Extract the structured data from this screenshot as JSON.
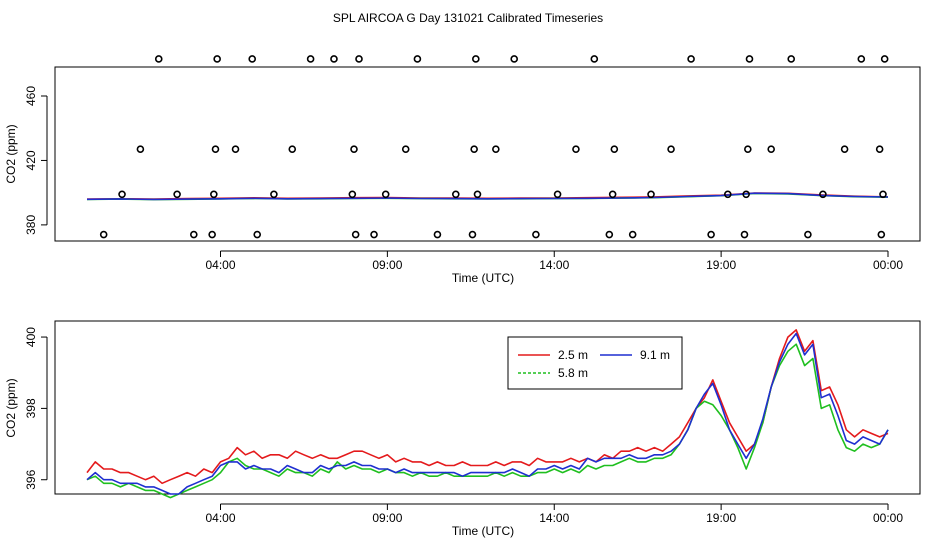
{
  "page_title": "SPL AIRCOA G  Day 131021  Calibrated Timeseries",
  "chart_data": [
    {
      "type": "scatter+line",
      "title": "",
      "xlabel": "Time (UTC)",
      "ylabel": "CO2 (ppm)",
      "xlim": [
        0,
        24
      ],
      "ylim": [
        370,
        478
      ],
      "x_tick_values": [
        4,
        9,
        14,
        19,
        24
      ],
      "x_tick_labels": [
        "04:00",
        "09:00",
        "14:00",
        "19:00",
        "00:00"
      ],
      "y_tick_values": [
        380,
        420,
        460
      ],
      "y_tick_labels": [
        "380",
        "420",
        "460"
      ],
      "points": {
        "name": "calibration samples",
        "x": [
          0.5,
          1.05,
          1.6,
          2.15,
          2.7,
          3.2,
          3.75,
          3.8,
          3.85,
          3.9,
          4.45,
          4.95,
          5.1,
          5.6,
          6.15,
          6.7,
          7.4,
          7.95,
          8.0,
          8.05,
          8.15,
          8.6,
          8.95,
          9.55,
          9.9,
          10.5,
          11.05,
          11.55,
          11.6,
          11.65,
          11.7,
          12.25,
          12.8,
          13.45,
          14.1,
          14.65,
          15.2,
          15.65,
          15.75,
          15.8,
          16.35,
          16.9,
          17.5,
          18.1,
          18.7,
          19.2,
          19.7,
          19.75,
          19.8,
          19.85,
          20.5,
          21.1,
          21.6,
          22.05,
          22.7,
          23.2,
          23.75,
          23.8,
          23.85,
          23.9
        ],
        "y": [
          374,
          399,
          427,
          483,
          399,
          374,
          374,
          399,
          427,
          483,
          427,
          483,
          374,
          399,
          427,
          483,
          483,
          399,
          427,
          374,
          483,
          374,
          399,
          427,
          483,
          374,
          399,
          374,
          427,
          483,
          399,
          427,
          483,
          374,
          399,
          427,
          483,
          374,
          399,
          427,
          374,
          399,
          427,
          483,
          374,
          399,
          374,
          399,
          427,
          483,
          427,
          483,
          374,
          399,
          427,
          483,
          427,
          374,
          399,
          483
        ]
      },
      "series": [
        {
          "name": "2.5 m",
          "color": "#e41a1c",
          "x": [
            0,
            1,
            2,
            3,
            4,
            5,
            6,
            7,
            8,
            9,
            10,
            11,
            12,
            13,
            14,
            15,
            16,
            17,
            18,
            19,
            20,
            21,
            22,
            23,
            24
          ],
          "values": [
            396,
            396.2,
            396,
            396.3,
            396.5,
            396.8,
            396.5,
            396.6,
            396.9,
            397,
            396.7,
            396.6,
            396.5,
            396.6,
            396.7,
            396.9,
            397.1,
            397.4,
            398,
            398.4,
            399.8,
            399.6,
            398.6,
            397.8,
            397.4
          ]
        },
        {
          "name": "5.8 m",
          "color": "#1fbf1f",
          "x": [
            0,
            1,
            2,
            3,
            4,
            5,
            6,
            7,
            8,
            9,
            10,
            11,
            12,
            13,
            14,
            15,
            16,
            17,
            18,
            19,
            20,
            21,
            22,
            23,
            24
          ],
          "values": [
            395.8,
            396,
            395.7,
            395.9,
            396.1,
            396.4,
            396.1,
            396.2,
            396.4,
            396.5,
            396.3,
            396.2,
            396.1,
            396.2,
            396.3,
            396.4,
            396.6,
            396.9,
            397.5,
            398.1,
            399.5,
            399.2,
            398.2,
            397.5,
            397.2
          ]
        },
        {
          "name": "9.1 m",
          "color": "#1f2fd0",
          "x": [
            0,
            1,
            2,
            3,
            4,
            5,
            6,
            7,
            8,
            9,
            10,
            11,
            12,
            13,
            14,
            15,
            16,
            17,
            18,
            19,
            20,
            21,
            22,
            23,
            24
          ],
          "values": [
            395.9,
            396.1,
            395.8,
            396,
            396.2,
            396.5,
            396.2,
            396.3,
            396.5,
            396.6,
            396.4,
            396.3,
            396.2,
            396.3,
            396.4,
            396.5,
            396.7,
            397,
            397.6,
            398.2,
            399.7,
            399.4,
            398.3,
            397.6,
            397.3
          ]
        }
      ]
    },
    {
      "type": "line",
      "title": "",
      "xlabel": "Time (UTC)",
      "ylabel": "CO2 (ppm)",
      "xlim": [
        0,
        24
      ],
      "ylim": [
        395.6,
        400.45
      ],
      "x_tick_values": [
        4,
        9,
        14,
        19,
        24
      ],
      "x_tick_labels": [
        "04:00",
        "09:00",
        "14:00",
        "19:00",
        "00:00"
      ],
      "y_tick_values": [
        396,
        398,
        400
      ],
      "y_tick_labels": [
        "396",
        "398",
        "400"
      ],
      "legend": {
        "position": "top-center",
        "entries": [
          "2.5 m",
          "9.1 m",
          "5.8 m"
        ]
      },
      "series": [
        {
          "name": "2.5 m",
          "color": "#e41a1c",
          "x": [
            0,
            0.25,
            0.5,
            0.75,
            1,
            1.25,
            1.5,
            1.75,
            2,
            2.25,
            2.5,
            2.75,
            3,
            3.25,
            3.5,
            3.75,
            4,
            4.25,
            4.5,
            4.75,
            5,
            5.25,
            5.5,
            5.75,
            6,
            6.25,
            6.5,
            6.75,
            7,
            7.25,
            7.5,
            7.75,
            8,
            8.25,
            8.5,
            8.75,
            9,
            9.25,
            9.5,
            9.75,
            10,
            10.25,
            10.5,
            10.75,
            11,
            11.25,
            11.5,
            11.75,
            12,
            12.25,
            12.5,
            12.75,
            13,
            13.25,
            13.5,
            13.75,
            14,
            14.25,
            14.5,
            14.75,
            15,
            15.25,
            15.5,
            15.75,
            16,
            16.25,
            16.5,
            16.75,
            17,
            17.25,
            17.5,
            17.75,
            18,
            18.25,
            18.5,
            18.75,
            19,
            19.25,
            19.5,
            19.75,
            20,
            20.25,
            20.5,
            20.75,
            21,
            21.25,
            21.5,
            21.75,
            22,
            22.25,
            22.5,
            22.75,
            23,
            23.25,
            23.5,
            23.75,
            24
          ],
          "values": [
            396.2,
            396.5,
            396.3,
            396.3,
            396.2,
            396.2,
            396.1,
            396,
            396.1,
            395.9,
            396,
            396.1,
            396.2,
            396.1,
            396.3,
            396.2,
            396.5,
            396.6,
            396.9,
            396.7,
            396.8,
            396.6,
            396.7,
            396.7,
            396.6,
            396.8,
            396.7,
            396.6,
            396.7,
            396.6,
            396.6,
            396.7,
            396.8,
            396.8,
            396.7,
            396.6,
            396.7,
            396.5,
            396.6,
            396.5,
            396.5,
            396.4,
            396.5,
            396.4,
            396.4,
            396.5,
            396.4,
            396.4,
            396.4,
            396.5,
            396.4,
            396.5,
            396.5,
            396.4,
            396.6,
            396.5,
            396.5,
            396.5,
            396.6,
            396.5,
            396.6,
            396.5,
            396.7,
            396.6,
            396.8,
            396.8,
            396.9,
            396.8,
            396.9,
            396.8,
            397,
            397.2,
            397.6,
            398,
            398.3,
            398.8,
            398.2,
            397.6,
            397.2,
            396.8,
            397,
            397.6,
            398.6,
            399.4,
            400,
            400.2,
            399.6,
            399.9,
            398.5,
            398.6,
            398.1,
            397.4,
            397.2,
            397.4,
            397.3,
            397.2,
            397.3
          ]
        },
        {
          "name": "5.8 m",
          "color": "#1fbf1f",
          "x": [
            0,
            0.25,
            0.5,
            0.75,
            1,
            1.25,
            1.5,
            1.75,
            2,
            2.25,
            2.5,
            2.75,
            3,
            3.25,
            3.5,
            3.75,
            4,
            4.25,
            4.5,
            4.75,
            5,
            5.25,
            5.5,
            5.75,
            6,
            6.25,
            6.5,
            6.75,
            7,
            7.25,
            7.5,
            7.75,
            8,
            8.25,
            8.5,
            8.75,
            9,
            9.25,
            9.5,
            9.75,
            10,
            10.25,
            10.5,
            10.75,
            11,
            11.25,
            11.5,
            11.75,
            12,
            12.25,
            12.5,
            12.75,
            13,
            13.25,
            13.5,
            13.75,
            14,
            14.25,
            14.5,
            14.75,
            15,
            15.25,
            15.5,
            15.75,
            16,
            16.25,
            16.5,
            16.75,
            17,
            17.25,
            17.5,
            17.75,
            18,
            18.25,
            18.5,
            18.75,
            19,
            19.25,
            19.5,
            19.75,
            20,
            20.25,
            20.5,
            20.75,
            21,
            21.25,
            21.5,
            21.75,
            22,
            22.25,
            22.5,
            22.75,
            23,
            23.25,
            23.5,
            23.75,
            24
          ],
          "values": [
            396,
            396.1,
            395.9,
            395.9,
            395.8,
            395.9,
            395.8,
            395.7,
            395.7,
            395.6,
            395.5,
            395.6,
            395.7,
            395.8,
            395.9,
            396,
            396.2,
            396.5,
            396.6,
            396.4,
            396.3,
            396.3,
            396.2,
            396.1,
            396.3,
            396.2,
            396.2,
            396.1,
            396.3,
            396.2,
            396.5,
            396.3,
            396.4,
            396.3,
            396.3,
            396.2,
            396.3,
            396.2,
            396.2,
            396.1,
            396.2,
            396.1,
            396.1,
            396.2,
            396.1,
            396.1,
            396.1,
            396.1,
            396.1,
            396.2,
            396.1,
            396.2,
            396.1,
            396.1,
            396.2,
            396.2,
            396.3,
            396.2,
            396.3,
            396.2,
            396.4,
            396.3,
            396.4,
            396.4,
            396.5,
            396.6,
            396.5,
            396.5,
            396.6,
            396.6,
            396.7,
            397,
            397.4,
            398,
            398.2,
            398.1,
            397.8,
            397.4,
            396.9,
            396.3,
            396.9,
            397.6,
            398.6,
            399.2,
            399.6,
            399.8,
            399.2,
            399.4,
            398,
            398.1,
            397.4,
            396.9,
            396.8,
            397,
            396.9,
            397,
            397.4
          ]
        },
        {
          "name": "9.1 m",
          "color": "#1f2fd0",
          "x": [
            0,
            0.25,
            0.5,
            0.75,
            1,
            1.25,
            1.5,
            1.75,
            2,
            2.25,
            2.5,
            2.75,
            3,
            3.25,
            3.5,
            3.75,
            4,
            4.25,
            4.5,
            4.75,
            5,
            5.25,
            5.5,
            5.75,
            6,
            6.25,
            6.5,
            6.75,
            7,
            7.25,
            7.5,
            7.75,
            8,
            8.25,
            8.5,
            8.75,
            9,
            9.25,
            9.5,
            9.75,
            10,
            10.25,
            10.5,
            10.75,
            11,
            11.25,
            11.5,
            11.75,
            12,
            12.25,
            12.5,
            12.75,
            13,
            13.25,
            13.5,
            13.75,
            14,
            14.25,
            14.5,
            14.75,
            15,
            15.25,
            15.5,
            15.75,
            16,
            16.25,
            16.5,
            16.75,
            17,
            17.25,
            17.5,
            17.75,
            18,
            18.25,
            18.5,
            18.75,
            19,
            19.25,
            19.5,
            19.75,
            20,
            20.25,
            20.5,
            20.75,
            21,
            21.25,
            21.5,
            21.75,
            22,
            22.25,
            22.5,
            22.75,
            23,
            23.25,
            23.5,
            23.75,
            24
          ],
          "values": [
            396,
            396.2,
            396,
            396,
            395.9,
            395.9,
            395.9,
            395.8,
            395.8,
            395.7,
            395.6,
            395.6,
            395.8,
            395.9,
            396,
            396.1,
            396.4,
            396.5,
            396.5,
            396.3,
            396.4,
            396.3,
            396.3,
            396.2,
            396.4,
            396.3,
            396.2,
            396.2,
            396.4,
            396.3,
            396.4,
            396.4,
            396.5,
            396.4,
            396.4,
            396.3,
            396.3,
            396.2,
            396.3,
            396.2,
            396.2,
            396.2,
            396.2,
            396.2,
            396.2,
            396.1,
            396.2,
            396.2,
            396.2,
            396.2,
            396.2,
            396.3,
            396.2,
            396.1,
            396.3,
            396.3,
            396.4,
            396.3,
            396.4,
            396.3,
            396.6,
            396.5,
            396.6,
            396.6,
            396.6,
            396.7,
            396.6,
            396.6,
            396.7,
            396.7,
            396.8,
            397,
            397.4,
            398,
            398.4,
            398.7,
            398.1,
            397.4,
            397,
            396.6,
            397,
            397.7,
            398.6,
            399.3,
            399.8,
            400.1,
            399.5,
            399.8,
            398.3,
            398.4,
            397.8,
            397.1,
            397,
            397.2,
            397.1,
            397,
            397.4
          ]
        }
      ]
    }
  ]
}
